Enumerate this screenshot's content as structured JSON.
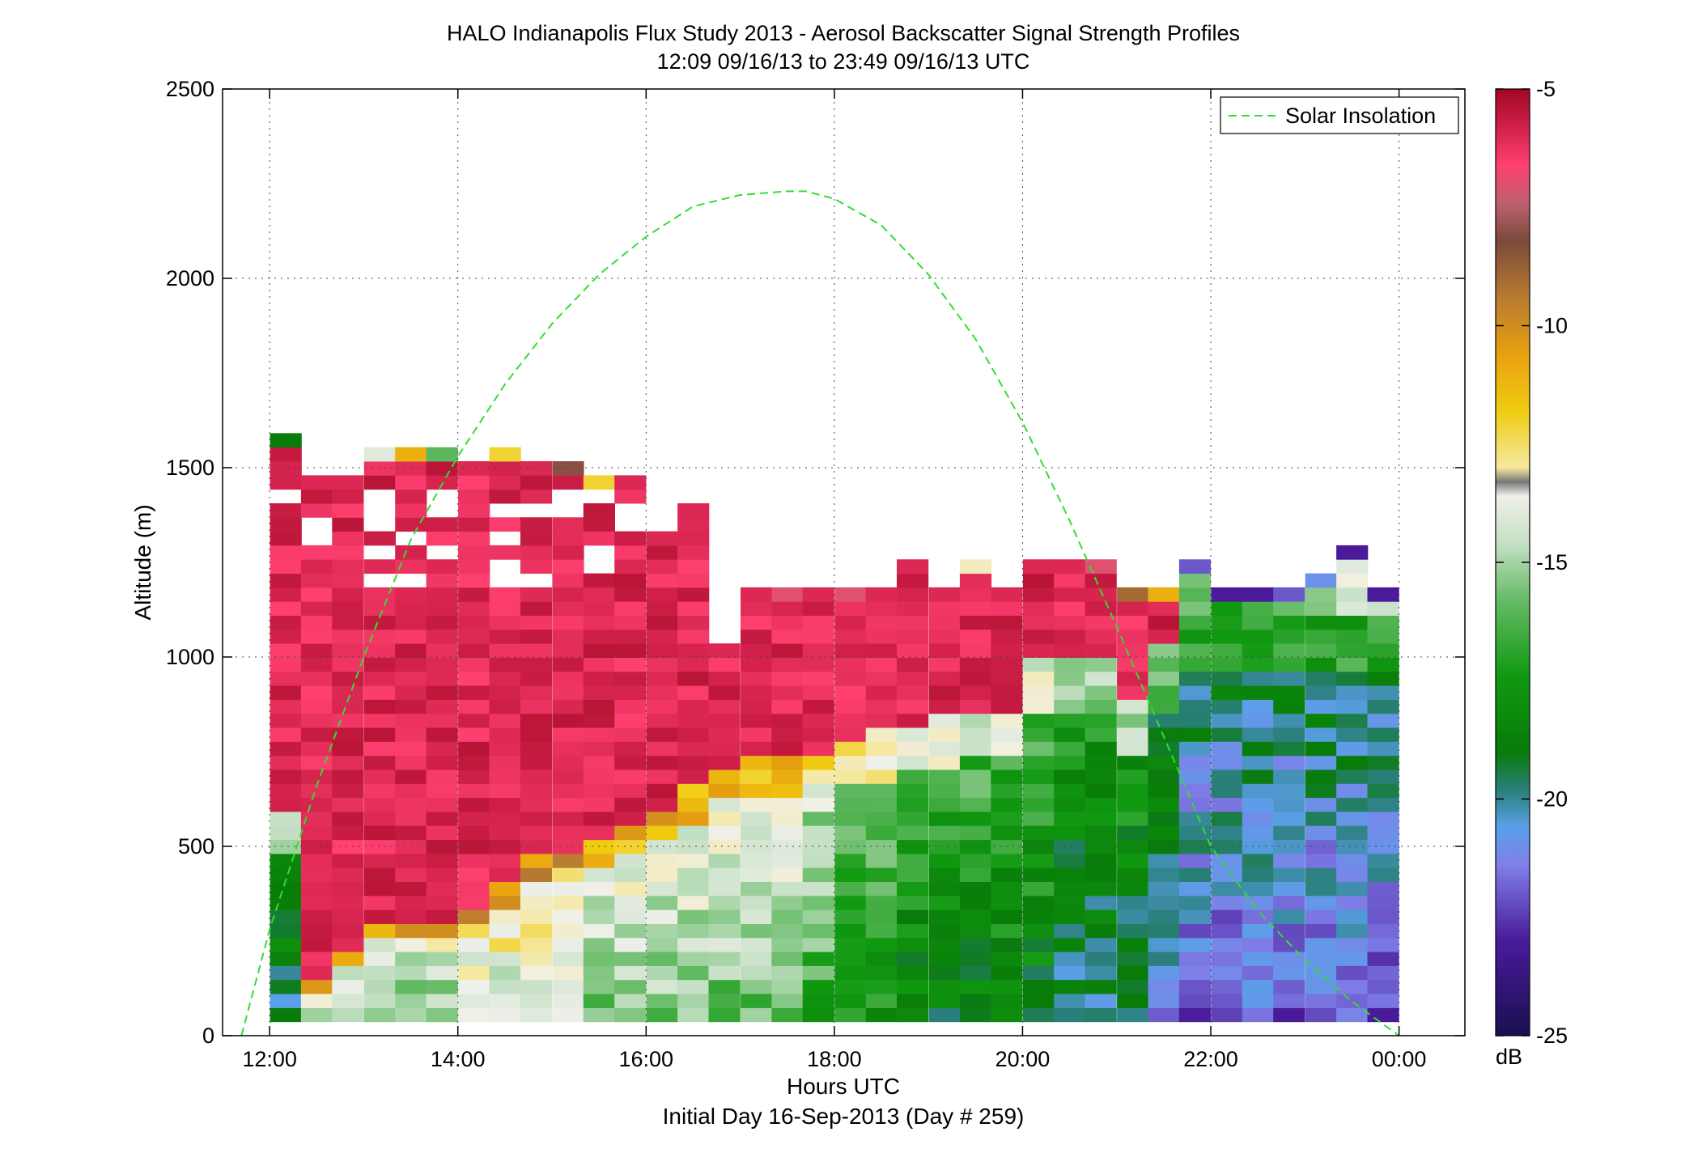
{
  "chart_data": {
    "type": "heatmap",
    "title": "HALO Indianapolis Flux Study 2013 - Aerosol Backscatter Signal Strength Profiles",
    "subtitle": "12:09 09/16/13 to 23:49 09/16/13  UTC",
    "xlabel": "Hours UTC",
    "xlabel2": "Initial Day 16-Sep-2013 (Day # 259)",
    "ylabel": "Altitude (m)",
    "x_range_hours": [
      11.5,
      24.7
    ],
    "xlim_hours": [
      11.5,
      24.7
    ],
    "ylim": [
      0,
      2500
    ],
    "x_ticks": [
      {
        "hour": 12,
        "label": "12:00"
      },
      {
        "hour": 14,
        "label": "14:00"
      },
      {
        "hour": 16,
        "label": "16:00"
      },
      {
        "hour": 18,
        "label": "18:00"
      },
      {
        "hour": 20,
        "label": "20:00"
      },
      {
        "hour": 22,
        "label": "22:00"
      },
      {
        "hour": 24,
        "label": "00:00"
      }
    ],
    "y_ticks": [
      {
        "value": 0,
        "label": "0"
      },
      {
        "value": 500,
        "label": "500"
      },
      {
        "value": 1000,
        "label": "1000"
      },
      {
        "value": 1500,
        "label": "1500"
      },
      {
        "value": 2000,
        "label": "2000"
      },
      {
        "value": 2500,
        "label": "2500"
      }
    ],
    "grid": true,
    "legend": {
      "entries": [
        "Solar Insolation"
      ],
      "placement": "top-right"
    },
    "colorbar": {
      "unit_label": "dB",
      "range": [
        -25,
        -5
      ],
      "ticks": [
        {
          "value": -5,
          "label": "-5"
        },
        {
          "value": -10,
          "label": "-10"
        },
        {
          "value": -15,
          "label": "-15"
        },
        {
          "value": -20,
          "label": "-20"
        },
        {
          "value": -25,
          "label": "-25"
        }
      ]
    },
    "heatmap": {
      "time_bin_hours": 0.333,
      "altitude_bin_m": 37,
      "profiles": [
        {
          "hour": 12.17,
          "max_alt": 1560,
          "top_db": -19,
          "cap_db": -6,
          "cap_bottom": 560,
          "layer_db": -17
        },
        {
          "hour": 12.5,
          "max_alt": 1450,
          "top_db": -6,
          "cap_db": -6,
          "cap_bottom": 130,
          "layer_db": -12
        },
        {
          "hour": 12.83,
          "max_alt": 1450,
          "top_db": -6,
          "cap_db": -6,
          "cap_bottom": 200,
          "layer_db": -13
        },
        {
          "hour": 13.17,
          "max_alt": 1530,
          "top_db": -14,
          "cap_db": -6,
          "cap_bottom": 280,
          "layer_db": -13
        },
        {
          "hour": 13.5,
          "max_alt": 1530,
          "top_db": -11,
          "cap_db": -6,
          "cap_bottom": 280,
          "layer_db": -13
        },
        {
          "hour": 13.83,
          "max_alt": 1530,
          "top_db": -16,
          "cap_db": -6,
          "cap_bottom": 280,
          "layer_db": -13
        },
        {
          "hour": 14.17,
          "max_alt": 1500,
          "top_db": -6,
          "cap_db": -6,
          "cap_bottom": 330,
          "layer_db": -12
        },
        {
          "hour": 14.5,
          "max_alt": 1530,
          "top_db": -12,
          "cap_db": -6,
          "cap_bottom": 380,
          "layer_db": -12
        },
        {
          "hour": 14.83,
          "max_alt": 1500,
          "top_db": -6,
          "cap_db": -6,
          "cap_bottom": 450,
          "layer_db": -12
        },
        {
          "hour": 15.17,
          "max_alt": 1500,
          "top_db": -8,
          "cap_db": -6,
          "cap_bottom": 480,
          "layer_db": -12
        },
        {
          "hour": 15.5,
          "max_alt": 1450,
          "top_db": -12,
          "cap_db": -6,
          "cap_bottom": 500,
          "layer_db": -13
        },
        {
          "hour": 15.83,
          "max_alt": 1450,
          "top_db": -6,
          "cap_db": -6,
          "cap_bottom": 530,
          "layer_db": -13
        },
        {
          "hour": 16.17,
          "max_alt": 1330,
          "top_db": -6,
          "cap_db": -6,
          "cap_bottom": 580,
          "layer_db": -13
        },
        {
          "hour": 16.5,
          "max_alt": 1380,
          "top_db": -6,
          "cap_db": -6,
          "cap_bottom": 630,
          "layer_db": -13
        },
        {
          "hour": 16.83,
          "max_alt": 1000,
          "top_db": -6,
          "cap_db": -6,
          "cap_bottom": 700,
          "layer_db": -13
        },
        {
          "hour": 17.17,
          "max_alt": 1150,
          "top_db": -6,
          "cap_db": -6,
          "cap_bottom": 720,
          "layer_db": -13
        },
        {
          "hour": 17.5,
          "max_alt": 1150,
          "top_db": -7,
          "cap_db": -6,
          "cap_bottom": 730,
          "layer_db": -13
        },
        {
          "hour": 17.83,
          "max_alt": 1150,
          "top_db": -6,
          "cap_db": -6,
          "cap_bottom": 740,
          "layer_db": -14
        },
        {
          "hour": 18.17,
          "max_alt": 1150,
          "top_db": -7,
          "cap_db": -6,
          "cap_bottom": 760,
          "layer_db": -15
        },
        {
          "hour": 18.5,
          "max_alt": 1150,
          "top_db": -6,
          "cap_db": -6,
          "cap_bottom": 780,
          "layer_db": -15
        },
        {
          "hour": 18.83,
          "max_alt": 1230,
          "top_db": -6,
          "cap_db": -6,
          "cap_bottom": 800,
          "layer_db": -16
        },
        {
          "hour": 19.17,
          "max_alt": 1150,
          "top_db": -6,
          "cap_db": -6,
          "cap_bottom": 820,
          "layer_db": -16
        },
        {
          "hour": 19.5,
          "max_alt": 1230,
          "top_db": -13,
          "cap_db": -6,
          "cap_bottom": 830,
          "layer_db": -16
        },
        {
          "hour": 19.83,
          "max_alt": 1150,
          "top_db": -6,
          "cap_db": -6,
          "cap_bottom": 840,
          "layer_db": -16
        },
        {
          "hour": 20.17,
          "max_alt": 1230,
          "top_db": -6,
          "cap_db": -6,
          "cap_bottom": 980,
          "layer_db": -16
        },
        {
          "hour": 20.5,
          "max_alt": 1230,
          "top_db": -6,
          "cap_db": -6,
          "cap_bottom": 980,
          "layer_db": -17
        },
        {
          "hour": 20.83,
          "max_alt": 1230,
          "top_db": -7,
          "cap_db": -6,
          "cap_bottom": 990,
          "layer_db": -17
        },
        {
          "hour": 21.17,
          "max_alt": 1150,
          "top_db": -9,
          "cap_db": -6,
          "cap_bottom": 860,
          "layer_db": -17
        },
        {
          "hour": 21.5,
          "max_alt": 1150,
          "top_db": -11,
          "cap_db": -6,
          "cap_bottom": 1000,
          "layer_db": -18
        },
        {
          "hour": 21.83,
          "max_alt": 1230,
          "top_db": -22,
          "cap_db": -16,
          "cap_bottom": 1100,
          "layer_db": -19
        },
        {
          "hour": 22.17,
          "max_alt": 1150,
          "top_db": -23,
          "cap_db": -17,
          "cap_bottom": 1100,
          "layer_db": -19
        },
        {
          "hour": 22.5,
          "max_alt": 1180,
          "top_db": -23,
          "cap_db": -16,
          "cap_bottom": 1100,
          "layer_db": -19
        },
        {
          "hour": 22.83,
          "max_alt": 1180,
          "top_db": -22,
          "cap_db": -16,
          "cap_bottom": 1100,
          "layer_db": -19
        },
        {
          "hour": 23.17,
          "max_alt": 1220,
          "top_db": -21,
          "cap_db": -15,
          "cap_bottom": 1100,
          "layer_db": -19
        },
        {
          "hour": 23.5,
          "max_alt": 1260,
          "top_db": -23,
          "cap_db": -14,
          "cap_bottom": 1100,
          "layer_db": -19
        },
        {
          "hour": 23.83,
          "max_alt": 1180,
          "top_db": -23,
          "cap_db": -14,
          "cap_bottom": 1100,
          "layer_db": -19
        }
      ]
    },
    "series": [
      {
        "name": "Solar Insolation",
        "style": "dashed",
        "color": "#33dd33",
        "x_hours": [
          11.7,
          12.0,
          12.5,
          13.0,
          13.5,
          14.0,
          14.5,
          15.0,
          15.5,
          16.0,
          16.5,
          17.0,
          17.5,
          17.7,
          18.0,
          18.5,
          19.0,
          19.5,
          20.0,
          20.5,
          21.0,
          21.5,
          22.0,
          22.5,
          23.0,
          23.5,
          24.0
        ],
        "y_alt": [
          0,
          280,
          660,
          1000,
          1310,
          1530,
          1720,
          1880,
          2010,
          2110,
          2190,
          2220,
          2230,
          2230,
          2210,
          2140,
          2010,
          1840,
          1620,
          1360,
          1080,
          790,
          500,
          330,
          200,
          90,
          0
        ]
      }
    ]
  }
}
